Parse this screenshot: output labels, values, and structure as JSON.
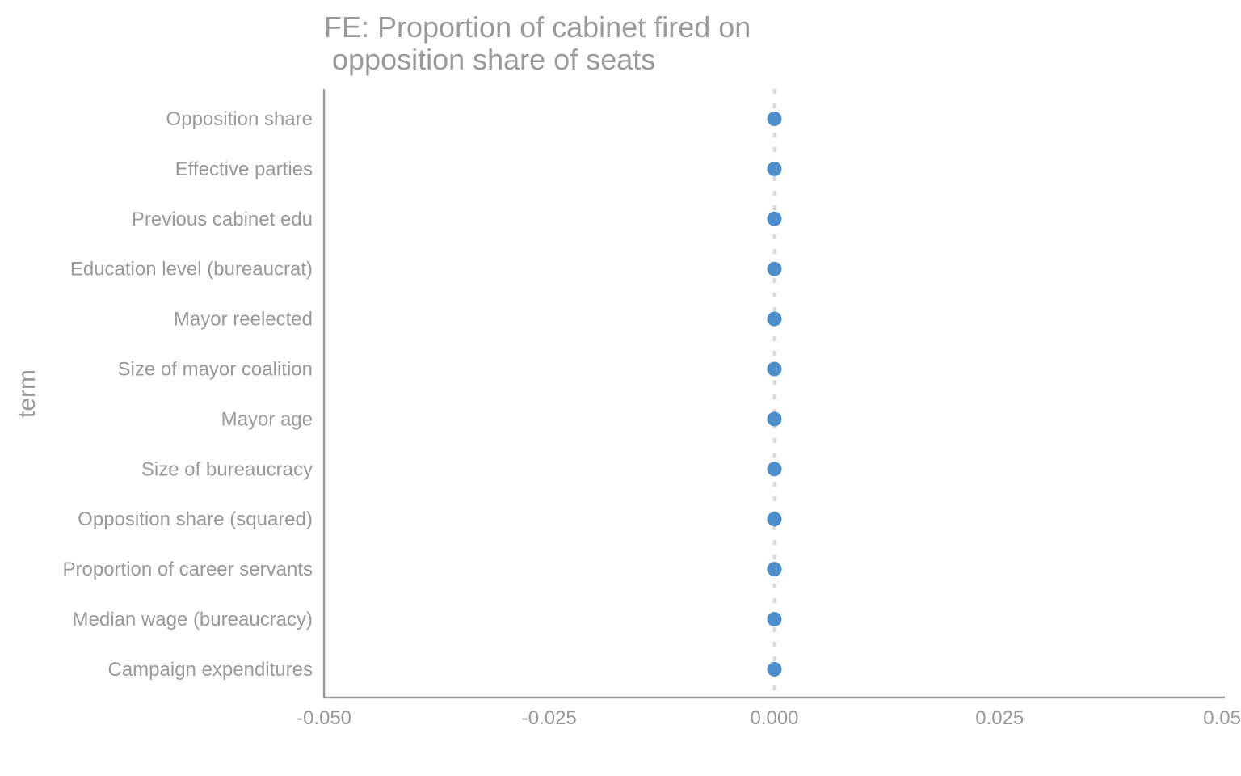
{
  "chart_data": {
    "type": "scatter",
    "title": "FE: Proportion of cabinet fired on\n opposition share of seats",
    "xlabel": "",
    "ylabel": "term",
    "xlim": [
      -0.05,
      0.05
    ],
    "x_ticks": [
      -0.05,
      -0.025,
      0.0,
      0.025,
      0.05
    ],
    "x_tick_labels": [
      "-0.050",
      "-0.025",
      "0.000",
      "0.025",
      "0.05"
    ],
    "reference_line": {
      "x": 0.0,
      "style": "dotted"
    },
    "categories": [
      "Opposition share",
      "Effective parties",
      "Previous cabinet edu",
      "Education level (bureaucrat)",
      "Mayor reelected",
      "Size of mayor coalition",
      "Mayor age",
      "Size of bureaucracy",
      "Opposition share (squared)",
      "Proportion of career servants",
      "Median wage (bureaucracy)",
      "Campaign expenditures"
    ],
    "values": [
      0,
      0,
      0,
      0,
      0,
      0,
      0,
      0,
      0,
      0,
      0,
      0
    ],
    "grid": false,
    "point_color": "#4e8fcb",
    "text_color": "#999999",
    "axis_color": "#999999",
    "reference_line_color": "#d9d9d9"
  }
}
